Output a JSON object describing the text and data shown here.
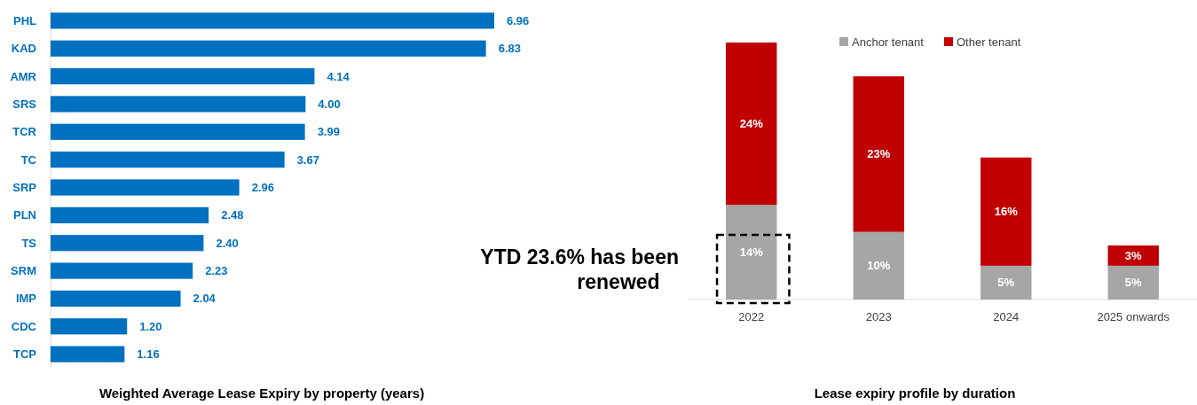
{
  "chart_data": [
    {
      "type": "bar",
      "orientation": "horizontal",
      "title": "Weighted Average Lease Expiry by property (years)",
      "categories": [
        "PHL",
        "KAD",
        "AMR",
        "SRS",
        "TCR",
        "TC",
        "SRP",
        "PLN",
        "TS",
        "SRM",
        "IMP",
        "CDC",
        "TCP"
      ],
      "values": [
        6.96,
        6.83,
        4.14,
        4.0,
        3.99,
        3.67,
        2.96,
        2.48,
        2.4,
        2.23,
        2.04,
        1.2,
        1.16
      ],
      "value_labels": [
        "6.96",
        "6.83",
        "4.14",
        "4.00",
        "3.99",
        "3.67",
        "2.96",
        "2.48",
        "2.40",
        "2.23",
        "2.04",
        "1.20",
        "1.16"
      ],
      "color": "#0070c0"
    },
    {
      "type": "bar",
      "stacked": true,
      "title": "Lease expiry profile by duration",
      "categories": [
        "2022",
        "2023",
        "2024",
        "2025 onwards"
      ],
      "series": [
        {
          "name": "Anchor tenant",
          "color": "#a6a6a6",
          "values": [
            14,
            10,
            5,
            5
          ],
          "value_labels": [
            "14%",
            "10%",
            "5%",
            "5%"
          ]
        },
        {
          "name": "Other tenant",
          "color": "#c00000",
          "values": [
            24,
            23,
            16,
            3
          ],
          "value_labels": [
            "24%",
            "23%",
            "16%",
            "3%"
          ]
        }
      ],
      "legend": "top",
      "annotations": [
        "YTD 23.6% has been renewed"
      ]
    }
  ]
}
